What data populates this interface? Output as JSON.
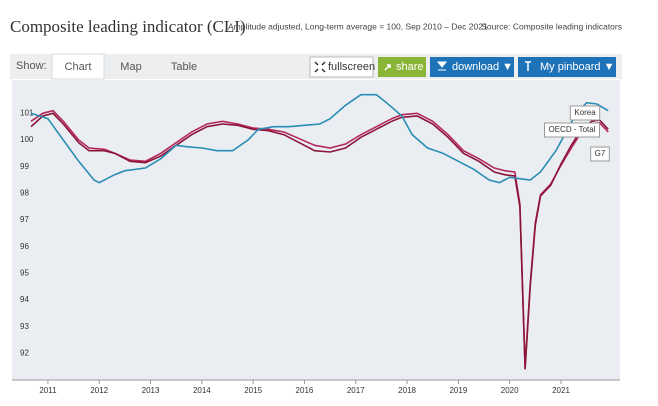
{
  "header": {
    "title": "Composite leading indicator (CLI)",
    "subtitle": "Amplitude adjusted, Long-term average = 100, Sep 2010 – Dec 2021",
    "source": "Source: Composite leading indicators"
  },
  "toolbar": {
    "show_label": "Show:",
    "tabs": [
      "Chart",
      "Map",
      "Table"
    ],
    "buttons": [
      "fullscreen",
      "share",
      "download ▼",
      "My pinboard ▼"
    ]
  },
  "chart_data": {
    "type": "line",
    "grid": false,
    "xlim": [
      2010.3,
      2022.15
    ],
    "xticks": [
      2011,
      2012,
      2013,
      2014,
      2015,
      2016,
      2017,
      2018,
      2019,
      2020,
      2021
    ],
    "ylim": [
      91,
      102.25
    ],
    "yticks": [
      92,
      93,
      94,
      95,
      96,
      97,
      98,
      99,
      100,
      101
    ],
    "series": [
      {
        "name": "Korea",
        "color": "#2a8db3",
        "x": [
          2010.67,
          2011.0,
          2011.3,
          2011.6,
          2011.9,
          2012.0,
          2012.3,
          2012.5,
          2012.9,
          2013.2,
          2013.5,
          2013.7,
          2014.0,
          2014.3,
          2014.6,
          2014.9,
          2015.1,
          2015.4,
          2015.7,
          2016.0,
          2016.3,
          2016.5,
          2016.8,
          2017.1,
          2017.4,
          2017.6,
          2017.9,
          2018.1,
          2018.4,
          2018.7,
          2019.0,
          2019.3,
          2019.6,
          2019.8,
          2020.0,
          2020.2,
          2020.4,
          2020.6,
          2020.9,
          2021.1,
          2021.3,
          2021.5,
          2021.7,
          2021.92
        ],
        "values": [
          101.0,
          100.8,
          100.0,
          99.2,
          98.5,
          98.4,
          98.7,
          98.85,
          98.95,
          99.3,
          99.8,
          99.75,
          99.7,
          99.6,
          99.6,
          100.0,
          100.4,
          100.5,
          100.5,
          100.55,
          100.6,
          100.8,
          101.3,
          101.7,
          101.7,
          101.4,
          100.9,
          100.2,
          99.7,
          99.5,
          99.2,
          98.9,
          98.5,
          98.4,
          98.6,
          98.55,
          98.5,
          98.8,
          99.6,
          100.3,
          101.0,
          101.4,
          101.35,
          101.1
        ]
      },
      {
        "name": "OECD - Total",
        "color": "#8a1538",
        "x": [
          2010.67,
          2010.9,
          2011.1,
          2011.3,
          2011.6,
          2011.8,
          2012.1,
          2012.3,
          2012.6,
          2012.9,
          2013.2,
          2013.5,
          2013.8,
          2014.1,
          2014.4,
          2014.7,
          2015.0,
          2015.3,
          2015.6,
          2015.9,
          2016.2,
          2016.5,
          2016.8,
          2017.1,
          2017.4,
          2017.7,
          2017.9,
          2018.2,
          2018.5,
          2018.8,
          2019.1,
          2019.4,
          2019.7,
          2019.9,
          2020.1,
          2020.2,
          2020.3,
          2020.4,
          2020.5,
          2020.6,
          2020.8,
          2021.0,
          2021.2,
          2021.4,
          2021.6,
          2021.75,
          2021.92
        ],
        "values": [
          100.5,
          100.9,
          101.0,
          100.6,
          99.9,
          99.6,
          99.6,
          99.5,
          99.2,
          99.15,
          99.4,
          99.8,
          100.2,
          100.5,
          100.6,
          100.55,
          100.4,
          100.35,
          100.2,
          99.9,
          99.6,
          99.55,
          99.7,
          100.1,
          100.4,
          100.7,
          100.85,
          100.9,
          100.6,
          100.1,
          99.5,
          99.2,
          98.8,
          98.7,
          98.65,
          97.5,
          91.4,
          94.5,
          96.8,
          97.9,
          98.3,
          99.1,
          99.8,
          100.4,
          100.7,
          100.75,
          100.4
        ]
      },
      {
        "name": "G7",
        "color": "#b5285e",
        "x": [
          2010.67,
          2010.9,
          2011.1,
          2011.3,
          2011.6,
          2011.8,
          2012.1,
          2012.3,
          2012.6,
          2012.9,
          2013.2,
          2013.5,
          2013.8,
          2014.1,
          2014.4,
          2014.7,
          2015.0,
          2015.3,
          2015.6,
          2015.9,
          2016.2,
          2016.5,
          2016.8,
          2017.1,
          2017.4,
          2017.7,
          2017.9,
          2018.2,
          2018.5,
          2018.8,
          2019.1,
          2019.4,
          2019.7,
          2019.9,
          2020.1,
          2020.2,
          2020.3,
          2020.4,
          2020.5,
          2020.6,
          2020.8,
          2021.0,
          2021.2,
          2021.4,
          2021.6,
          2021.75,
          2021.92
        ],
        "values": [
          100.7,
          101.0,
          101.1,
          100.7,
          100.0,
          99.7,
          99.65,
          99.5,
          99.25,
          99.2,
          99.5,
          99.9,
          100.3,
          100.6,
          100.7,
          100.6,
          100.45,
          100.4,
          100.3,
          100.05,
          99.8,
          99.7,
          99.85,
          100.2,
          100.5,
          100.8,
          100.95,
          101.0,
          100.7,
          100.2,
          99.6,
          99.3,
          98.95,
          98.85,
          98.8,
          97.6,
          91.5,
          94.6,
          96.9,
          97.95,
          98.35,
          99.05,
          99.7,
          100.3,
          100.6,
          100.65,
          100.3
        ]
      }
    ]
  }
}
